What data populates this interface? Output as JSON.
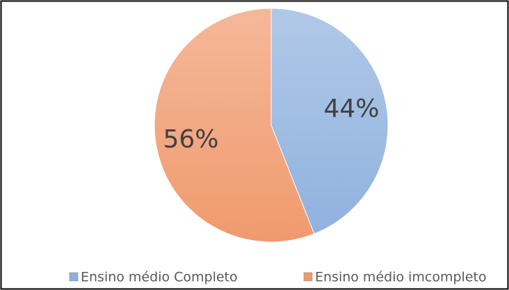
{
  "chart_data": {
    "type": "pie",
    "categories": [
      "Ensino médio Completo",
      "Ensino médio imcompleto"
    ],
    "values": [
      44,
      56
    ],
    "value_labels": [
      "44%",
      "56%"
    ],
    "colors": [
      "#8fb1de",
      "#f09a6e"
    ]
  }
}
